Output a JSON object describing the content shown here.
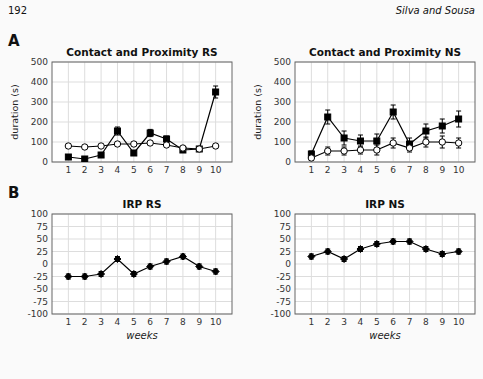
{
  "chart_data": [
    {
      "type": "line",
      "title": "Contact and Proximity RS",
      "ylabel": "duration (s)",
      "annotations": [
        "192",
        "Silva and Sousa",
        "A"
      ],
      "x": [
        1,
        2,
        3,
        4,
        5,
        6,
        7,
        8,
        9,
        10
      ],
      "xlim": [
        0,
        11
      ],
      "xticks": [
        1,
        2,
        3,
        4,
        5,
        6,
        7,
        8,
        9,
        10
      ],
      "ylim": [
        0,
        500
      ],
      "yticks": [
        0,
        100,
        200,
        300,
        400,
        500
      ],
      "grid": true,
      "series": [
        {
          "color": "#000000",
          "marker": "square",
          "line_style": "solid",
          "values": [
            25,
            15,
            35,
            155,
            45,
            145,
            115,
            60,
            65,
            350
          ],
          "errors": [
            8,
            5,
            10,
            20,
            12,
            18,
            15,
            10,
            10,
            30
          ]
        },
        {
          "color": "#000000",
          "marker": "circle-open",
          "line_style": "solid",
          "values": [
            80,
            75,
            80,
            90,
            90,
            95,
            85,
            70,
            65,
            80
          ],
          "errors": [
            10,
            8,
            8,
            10,
            10,
            10,
            8,
            8,
            8,
            10
          ]
        }
      ]
    },
    {
      "type": "line",
      "title": "Contact and Proximity NS",
      "ylabel": "duration (s)",
      "x": [
        1,
        2,
        3,
        4,
        5,
        6,
        7,
        8,
        9,
        10
      ],
      "xlim": [
        0,
        11
      ],
      "xticks": [
        1,
        2,
        3,
        4,
        5,
        6,
        7,
        8,
        9,
        10
      ],
      "ylim": [
        0,
        500
      ],
      "yticks": [
        0,
        100,
        200,
        300,
        400,
        500
      ],
      "grid": true,
      "series": [
        {
          "color": "#000000",
          "marker": "square",
          "line_style": "solid",
          "values": [
            40,
            225,
            120,
            105,
            105,
            250,
            90,
            155,
            180,
            215
          ],
          "errors": [
            15,
            35,
            35,
            30,
            35,
            35,
            30,
            35,
            35,
            40
          ]
        },
        {
          "color": "#000000",
          "marker": "circle-open",
          "line_style": "solid",
          "values": [
            20,
            55,
            55,
            60,
            60,
            95,
            70,
            100,
            100,
            95
          ],
          "errors": [
            10,
            20,
            20,
            20,
            25,
            25,
            20,
            25,
            30,
            25
          ]
        }
      ]
    },
    {
      "type": "line",
      "title": "IRP RS",
      "xlabel": "weeks",
      "annotations": [
        "B"
      ],
      "x": [
        1,
        2,
        3,
        4,
        5,
        6,
        7,
        8,
        9,
        10
      ],
      "xlim": [
        0,
        11
      ],
      "xticks": [
        1,
        2,
        3,
        4,
        5,
        6,
        7,
        8,
        9,
        10
      ],
      "ylim": [
        -100,
        100
      ],
      "yticks": [
        -100,
        -75,
        -50,
        -25,
        0,
        25,
        50,
        75,
        100
      ],
      "grid": true,
      "series": [
        {
          "color": "#000000",
          "marker": "diamond",
          "line_style": "solid",
          "values": [
            -25,
            -25,
            -20,
            10,
            -20,
            -5,
            5,
            15,
            -5,
            -15
          ],
          "errors": [
            5,
            5,
            5,
            5,
            5,
            5,
            5,
            5,
            5,
            5
          ]
        }
      ]
    },
    {
      "type": "line",
      "title": "IRP NS",
      "xlabel": "weeks",
      "x": [
        1,
        2,
        3,
        4,
        5,
        6,
        7,
        8,
        9,
        10
      ],
      "xlim": [
        0,
        11
      ],
      "xticks": [
        1,
        2,
        3,
        4,
        5,
        6,
        7,
        8,
        9,
        10
      ],
      "ylim": [
        -100,
        100
      ],
      "yticks": [
        -100,
        -75,
        -50,
        -25,
        0,
        25,
        50,
        75,
        100
      ],
      "grid": true,
      "series": [
        {
          "color": "#000000",
          "marker": "diamond",
          "line_style": "solid",
          "values": [
            15,
            25,
            10,
            30,
            40,
            45,
            45,
            30,
            20,
            25
          ],
          "errors": [
            5,
            5,
            5,
            5,
            5,
            5,
            5,
            5,
            5,
            5
          ]
        }
      ]
    }
  ]
}
